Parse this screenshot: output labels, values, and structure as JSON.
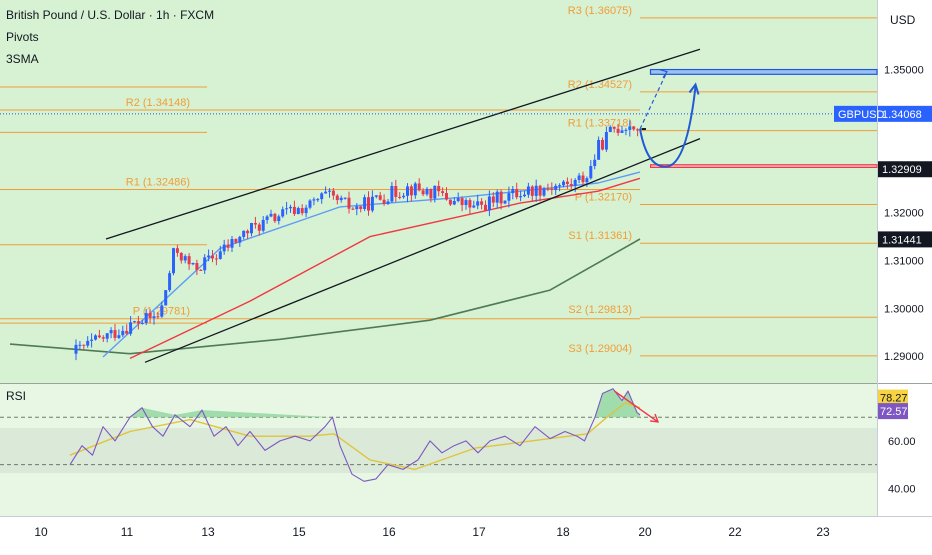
{
  "header": {
    "title": "British Pound / U.S. Dollar · 1h · FXCM",
    "indicator1": "Pivots",
    "indicator2": "3SMA"
  },
  "colors": {
    "background": "#d7f2d2",
    "rsi_background": "#e7f7e3",
    "bull": "#2962ff",
    "bear": "#e53950",
    "pivot": "#f29c38",
    "sma_fast": "#5b9cf6",
    "sma_mid": "#f23645",
    "sma_slow": "#4f7a55",
    "trendline": "#131722",
    "arrow": "#1e5ad6",
    "rsi_line": "#7e57c2",
    "rsi_ma": "#e0c43a",
    "rsi_arrow": "#f23645"
  },
  "chart_data": [
    {
      "type": "candlestick",
      "symbol": "GBPUSD",
      "timeframe": "1h",
      "currency_label": "USD",
      "x_tick_labels": [
        "10",
        "11",
        "13",
        "15",
        "16",
        "17",
        "18",
        "20",
        "22",
        "23"
      ],
      "y_range": [
        1.2875,
        1.3622
      ],
      "y_tick_labels": [
        "1.35000",
        "1.32000",
        "1.31000",
        "1.30000",
        "1.29000"
      ],
      "price_tags": [
        {
          "label": "GBPUSD",
          "value": "1.34068",
          "price": 1.34068,
          "style": "blue"
        },
        {
          "label": "",
          "value": "1.32909",
          "price": 1.32909,
          "style": "dark"
        },
        {
          "label": "",
          "value": "1.31441",
          "price": 1.31441,
          "style": "black"
        }
      ],
      "pivot_levels": [
        {
          "label": "R3 (1.36075)",
          "price": 1.36075,
          "segment": "current"
        },
        {
          "label": "R2 (1.34527)",
          "price": 1.34527,
          "segment": "current"
        },
        {
          "label": "R1 (1.33718)",
          "price": 1.33718,
          "segment": "current"
        },
        {
          "label": "P (1.32170)",
          "price": 1.3217,
          "segment": "current"
        },
        {
          "label": "S1 (1.31361)",
          "price": 1.31361,
          "segment": "current"
        },
        {
          "label": "S2 (1.29813)",
          "price": 1.29813,
          "segment": "current"
        },
        {
          "label": "S3 (1.29004)",
          "price": 1.29004,
          "segment": "current"
        },
        {
          "label": "R2 (1.34148)",
          "price": 1.34148,
          "segment": "previous"
        },
        {
          "label": "R1 (1.32486)",
          "price": 1.32486,
          "segment": "previous"
        },
        {
          "label": "P (1.29781)",
          "price": 1.29781,
          "segment": "previous"
        },
        {
          "label": "",
          "price": 1.3463,
          "segment": "older"
        },
        {
          "label": "",
          "price": 1.3368,
          "segment": "older"
        },
        {
          "label": "",
          "price": 1.3133,
          "segment": "older"
        },
        {
          "label": "",
          "price": 1.2969,
          "segment": "older"
        }
      ],
      "close_path": [
        [
          0,
          1.2905
        ],
        [
          40,
          1.2965
        ],
        [
          60,
          1.2985
        ],
        [
          70,
          1.3125
        ],
        [
          82,
          1.3082
        ],
        [
          95,
          1.3105
        ],
        [
          120,
          1.3165
        ],
        [
          140,
          1.3195
        ],
        [
          160,
          1.3215
        ],
        [
          170,
          1.3235
        ],
        [
          190,
          1.3208
        ],
        [
          210,
          1.3235
        ],
        [
          225,
          1.3252
        ],
        [
          245,
          1.324
        ],
        [
          255,
          1.3225
        ],
        [
          270,
          1.321
        ],
        [
          290,
          1.3235
        ],
        [
          305,
          1.3246
        ],
        [
          320,
          1.3255
        ],
        [
          335,
          1.326
        ],
        [
          345,
          1.3278
        ],
        [
          352,
          1.3335
        ],
        [
          362,
          1.3375
        ],
        [
          372,
          1.3385
        ],
        [
          380,
          1.3375
        ]
      ],
      "sma_fast": [
        [
          22,
          1.2898
        ],
        [
          100,
          1.3125
        ],
        [
          180,
          1.3212
        ],
        [
          260,
          1.3232
        ],
        [
          352,
          1.3262
        ],
        [
          380,
          1.3285
        ]
      ],
      "sma_mid": [
        [
          40,
          1.2895
        ],
        [
          120,
          1.3015
        ],
        [
          200,
          1.315
        ],
        [
          300,
          1.322
        ],
        [
          352,
          1.3245
        ],
        [
          380,
          1.3272
        ]
      ],
      "sma_slow": [
        [
          -40,
          1.2925
        ],
        [
          40,
          1.2905
        ],
        [
          140,
          1.2935
        ],
        [
          240,
          1.2975
        ],
        [
          320,
          1.3038
        ],
        [
          380,
          1.3145
        ]
      ],
      "trend_upper": [
        [
          24,
          1.3145
        ],
        [
          420,
          1.3542
        ]
      ],
      "trend_lower": [
        [
          50,
          1.2887
        ],
        [
          420,
          1.3355
        ]
      ],
      "target_zone": [
        1.34895,
        1.34995
      ],
      "support_zone": [
        1.32945,
        1.33005
      ],
      "projection": {
        "start": [
          380,
          1.3375
        ],
        "peak": [
          398,
          1.3495
        ],
        "dip": [
          400,
          1.3298
        ],
        "end": [
          417,
          1.3464
        ]
      }
    },
    {
      "type": "line",
      "name": "RSI",
      "title": "RSI",
      "y_range": [
        33,
        84
      ],
      "y_tick_labels": [
        "60.00",
        "40.00"
      ],
      "dashed_levels": [
        70,
        50
      ],
      "value_tags": [
        {
          "value": "78.27",
          "level": 78.27,
          "color": "#f5d341"
        },
        {
          "value": "72.57",
          "level": 72.57,
          "color": "#7e57c2"
        }
      ],
      "rsi_path": [
        [
          0,
          50
        ],
        [
          8,
          58
        ],
        [
          15,
          54
        ],
        [
          22,
          66
        ],
        [
          30,
          60
        ],
        [
          40,
          70
        ],
        [
          48,
          74
        ],
        [
          55,
          66
        ],
        [
          62,
          62
        ],
        [
          70,
          71
        ],
        [
          80,
          66
        ],
        [
          88,
          73
        ],
        [
          96,
          62
        ],
        [
          104,
          66
        ],
        [
          112,
          58
        ],
        [
          120,
          64
        ],
        [
          130,
          56
        ],
        [
          140,
          60
        ],
        [
          150,
          62
        ],
        [
          160,
          60
        ],
        [
          170,
          66
        ],
        [
          175,
          70
        ],
        [
          180,
          58
        ],
        [
          188,
          46
        ],
        [
          196,
          43
        ],
        [
          204,
          44
        ],
        [
          212,
          50
        ],
        [
          222,
          48
        ],
        [
          232,
          52
        ],
        [
          240,
          60
        ],
        [
          248,
          55
        ],
        [
          256,
          58
        ],
        [
          264,
          60
        ],
        [
          272,
          55
        ],
        [
          280,
          60
        ],
        [
          290,
          62
        ],
        [
          300,
          58
        ],
        [
          310,
          66
        ],
        [
          320,
          61
        ],
        [
          330,
          64
        ],
        [
          338,
          62
        ],
        [
          343,
          60
        ],
        [
          350,
          70
        ],
        [
          355,
          80
        ],
        [
          362,
          82
        ],
        [
          368,
          77
        ],
        [
          372,
          81
        ],
        [
          378,
          72
        ],
        [
          380,
          71
        ]
      ],
      "rsi_ma_path": [
        [
          0,
          54
        ],
        [
          40,
          64
        ],
        [
          80,
          69
        ],
        [
          120,
          62
        ],
        [
          160,
          62
        ],
        [
          176,
          63
        ],
        [
          200,
          52
        ],
        [
          230,
          48
        ],
        [
          270,
          57
        ],
        [
          320,
          61
        ],
        [
          345,
          63
        ],
        [
          358,
          70
        ],
        [
          370,
          76
        ],
        [
          380,
          74
        ]
      ],
      "rsi_arrow": {
        "from": [
          363,
          81
        ],
        "to": [
          392,
          68
        ]
      }
    }
  ]
}
